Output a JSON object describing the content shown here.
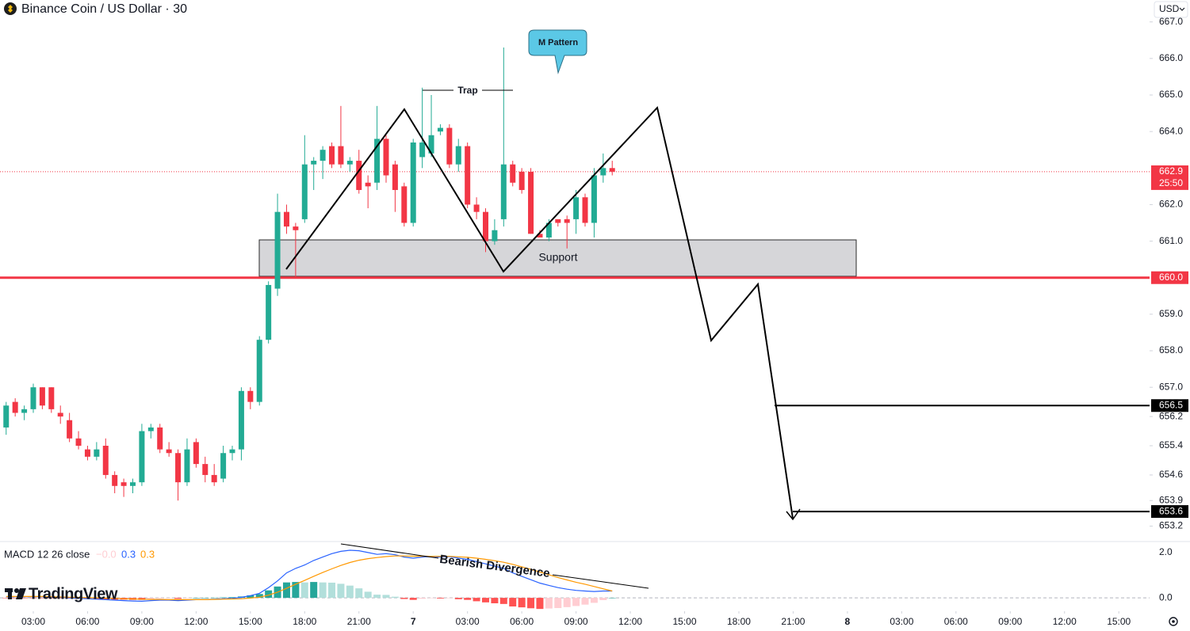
{
  "chart_data": {
    "type": "candlestick",
    "title": "Binance Coin / US Dollar · 30",
    "currency": "USD",
    "x": [
      1.5,
      2,
      2.5,
      3,
      3.5,
      4,
      4.5,
      5,
      5.5,
      6,
      6.5,
      7,
      7.5,
      8,
      8.5,
      9,
      9.5,
      10,
      10.5,
      11,
      11.5,
      12,
      12.5,
      13,
      13.5,
      14,
      14.5,
      15,
      15.5,
      16,
      16.5,
      17,
      17.5,
      18,
      18.5,
      19,
      19.5,
      20,
      20.5,
      21,
      21.5,
      22,
      22.5,
      23,
      23.5,
      24,
      24.5,
      25,
      25.5,
      26,
      26.5,
      27,
      27.5,
      28,
      28.5,
      29,
      29.5,
      30,
      30.5,
      31,
      31.5,
      32,
      32.5,
      33,
      33.5,
      34,
      34.5,
      35
    ],
    "open": [
      655.9,
      656.6,
      656.3,
      656.4,
      657.0,
      657.0,
      656.3,
      656.1,
      655.6,
      655.3,
      655.1,
      655.4,
      654.6,
      654.4,
      654.3,
      654.4,
      655.8,
      655.9,
      655.3,
      655.2,
      654.4,
      655.5,
      654.9,
      654.6,
      654.5,
      655.2,
      655.3,
      656.9,
      656.6,
      658.3,
      659.7,
      661.8,
      661.4,
      661.6,
      663.1,
      663.2,
      663.6,
      663.6,
      663.1,
      663.2,
      662.6,
      662.6,
      663.8,
      663.1,
      662.5,
      661.5,
      663.3,
      663.4,
      664.0,
      664.1,
      663.1,
      663.6,
      662.0,
      661.8,
      661.0,
      661.6,
      663.1,
      662.9,
      662.9,
      661.2,
      661.1,
      661.6,
      661.6,
      661.6,
      662.2,
      661.5,
      662.8,
      663.0
    ],
    "high": [
      656.6,
      656.7,
      656.5,
      657.1,
      657.0,
      657.0,
      656.5,
      656.3,
      655.8,
      655.4,
      655.5,
      655.6,
      654.7,
      654.5,
      654.5,
      656.0,
      656.0,
      656.0,
      655.5,
      655.3,
      655.6,
      655.6,
      655.1,
      654.9,
      655.4,
      655.4,
      657.0,
      657.0,
      658.4,
      659.9,
      662.3,
      662.0,
      661.5,
      663.9,
      663.3,
      663.6,
      663.7,
      664.7,
      663.3,
      663.5,
      662.8,
      664.7,
      663.9,
      663.2,
      662.6,
      663.8,
      665.2,
      665.0,
      664.2,
      664.2,
      663.8,
      663.7,
      662.2,
      661.9,
      661.6,
      666.3,
      663.2,
      663.0,
      663.0,
      661.3,
      661.6,
      661.6,
      661.7,
      662.4,
      662.3,
      663.0,
      663.4,
      663.2
    ],
    "low": [
      655.7,
      656.2,
      656.1,
      656.3,
      656.4,
      656.3,
      656.0,
      655.5,
      655.3,
      655.0,
      655.0,
      654.5,
      654.1,
      654.0,
      654.1,
      654.3,
      655.6,
      655.2,
      655.1,
      653.9,
      654.3,
      654.8,
      654.4,
      654.3,
      654.4,
      655.0,
      655.0,
      656.4,
      656.5,
      658.2,
      659.5,
      661.2,
      660.0,
      661.5,
      662.4,
      662.7,
      663.0,
      663.0,
      662.9,
      662.3,
      661.9,
      662.4,
      662.6,
      661.8,
      661.4,
      661.4,
      663.0,
      663.3,
      663.9,
      663.0,
      662.9,
      661.9,
      661.6,
      660.7,
      660.9,
      661.4,
      662.5,
      662.3,
      661.2,
      661.1,
      661.0,
      661.4,
      660.8,
      661.2,
      661.4,
      661.1,
      662.6,
      662.8
    ],
    "close": [
      656.5,
      656.3,
      656.4,
      657.0,
      656.5,
      656.4,
      656.2,
      655.6,
      655.4,
      655.1,
      655.3,
      654.6,
      654.3,
      654.3,
      654.4,
      655.8,
      655.9,
      655.3,
      655.2,
      654.4,
      655.3,
      654.9,
      654.6,
      654.4,
      655.2,
      655.3,
      656.9,
      656.6,
      658.3,
      659.8,
      661.8,
      661.4,
      661.3,
      663.1,
      663.2,
      663.5,
      663.1,
      663.1,
      663.2,
      662.4,
      662.5,
      663.8,
      662.8,
      662.4,
      661.5,
      663.7,
      663.7,
      663.9,
      664.1,
      663.1,
      663.6,
      662.0,
      661.8,
      661.0,
      661.3,
      663.1,
      662.6,
      662.4,
      661.2,
      661.1,
      661.5,
      661.5,
      661.5,
      662.2,
      661.5,
      662.8,
      663.0,
      662.9
    ],
    "up_color": "#22ab94",
    "down_color": "#f23645",
    "xlim": [
      1.16,
      64.7
    ],
    "xticks": [
      {
        "value": 3,
        "label": "03:00"
      },
      {
        "value": 6,
        "label": "06:00"
      },
      {
        "value": 9,
        "label": "09:00"
      },
      {
        "value": 12,
        "label": "12:00"
      },
      {
        "value": 15,
        "label": "15:00"
      },
      {
        "value": 18,
        "label": "18:00"
      },
      {
        "value": 21,
        "label": "21:00"
      },
      {
        "value": 24,
        "label": "7"
      },
      {
        "value": 27,
        "label": "03:00"
      },
      {
        "value": 30,
        "label": "06:00"
      },
      {
        "value": 33,
        "label": "09:00"
      },
      {
        "value": 36,
        "label": "12:00"
      },
      {
        "value": 39,
        "label": "15:00"
      },
      {
        "value": 42,
        "label": "18:00"
      },
      {
        "value": 45,
        "label": "21:00"
      },
      {
        "value": 48,
        "label": "8"
      },
      {
        "value": 51,
        "label": "03:00"
      },
      {
        "value": 54,
        "label": "06:00"
      },
      {
        "value": 57,
        "label": "09:00"
      },
      {
        "value": 60,
        "label": "12:00"
      },
      {
        "value": 63,
        "label": "15:00"
      }
    ],
    "ylim": [
      652.8,
      667.6
    ],
    "yticks": [
      {
        "value": 667,
        "label": "667.0"
      },
      {
        "value": 666,
        "label": "666.0"
      },
      {
        "value": 665,
        "label": "665.0"
      },
      {
        "value": 664,
        "label": "664.0"
      },
      {
        "value": 662,
        "label": "662.0"
      },
      {
        "value": 661,
        "label": "661.0"
      },
      {
        "value": 659,
        "label": "659.0"
      },
      {
        "value": 658,
        "label": "658.0"
      },
      {
        "value": 657,
        "label": "657.0"
      },
      {
        "value": 656.2,
        "label": "656.2"
      },
      {
        "value": 655.4,
        "label": "655.4"
      },
      {
        "value": 654.6,
        "label": "654.6"
      },
      {
        "value": 653.9,
        "label": "653.9"
      },
      {
        "value": 653.2,
        "label": "653.2"
      }
    ],
    "last_price": {
      "value": 662.9,
      "label": "662.9",
      "countdown": "25:50",
      "color": "#f23645"
    },
    "levels": [
      {
        "value": 660,
        "label": "660.0",
        "color": "#f23645"
      },
      {
        "value": 656.5,
        "label": "656.5",
        "color": "#000000"
      },
      {
        "value": 653.6,
        "label": "653.6",
        "color": "#000000"
      }
    ],
    "annotations": {
      "support": "Support",
      "trap": "Trap",
      "pattern": "M Pattern",
      "divergence": "Bearish Divergence"
    },
    "branding": "TradingView",
    "indicator": {
      "type": "line",
      "title": "MACD 12 26 close",
      "ylim": [
        -0.52,
        2.45
      ],
      "yticks": [
        {
          "value": 2,
          "label": "2.0"
        },
        {
          "value": 0,
          "label": "0.0"
        }
      ],
      "histogram": {
        "values": [
          -0.01,
          -0.01,
          -0.01,
          -0.01,
          -0.01,
          -0.02,
          -0.02,
          -0.03,
          -0.04,
          -0.05,
          -0.06,
          -0.07,
          -0.08,
          -0.08,
          -0.09,
          -0.09,
          -0.05,
          -0.03,
          -0.02,
          -0.04,
          -0.02,
          0,
          0,
          0.01,
          0.02,
          0.03,
          0.06,
          0.11,
          0.17,
          0.33,
          0.5,
          0.68,
          0.7,
          0.68,
          0.7,
          0.68,
          0.67,
          0.62,
          0.54,
          0.42,
          0.27,
          0.14,
          0.13,
          0.05,
          -0.05,
          -0.09,
          -0.04,
          -0.01,
          -0.03,
          -0.01,
          -0.06,
          -0.09,
          -0.15,
          -0.2,
          -0.24,
          -0.27,
          -0.38,
          -0.42,
          -0.46,
          -0.49,
          -0.47,
          -0.45,
          -0.41,
          -0.36,
          -0.3,
          -0.22,
          -0.1,
          0
        ],
        "colors": {
          "up": "#26a69a",
          "up_fading": "#b2dfdb",
          "down": "#ff5252",
          "down_fading": "#ffcdd2"
        },
        "last_label": "−0.0"
      },
      "series": [
        {
          "color": "#2962ff",
          "last_label": "0.3",
          "values": [
            0.05,
            0.05,
            0.05,
            0.05,
            0.05,
            0.03,
            0.02,
            0,
            -0.02,
            -0.04,
            -0.06,
            -0.08,
            -0.1,
            -0.12,
            -0.14,
            -0.15,
            -0.12,
            -0.1,
            -0.1,
            -0.12,
            -0.1,
            -0.08,
            -0.08,
            -0.06,
            -0.04,
            -0.02,
            0.02,
            0.1,
            0.2,
            0.45,
            0.75,
            1.1,
            1.3,
            1.45,
            1.65,
            1.8,
            1.95,
            2.05,
            2.1,
            2.08,
            2.0,
            1.92,
            1.95,
            1.9,
            1.8,
            1.75,
            1.8,
            1.82,
            1.8,
            1.82,
            1.75,
            1.7,
            1.6,
            1.5,
            1.4,
            1.3,
            1.1,
            0.95,
            0.8,
            0.65,
            0.55,
            0.45,
            0.38,
            0.33,
            0.3,
            0.28,
            0.3,
            0.3
          ]
        },
        {
          "color": "#ff9800",
          "last_label": "0.3",
          "values": [
            0.06,
            0.06,
            0.06,
            0.06,
            0.06,
            0.05,
            0.04,
            0.03,
            0.02,
            0.01,
            0,
            -0.01,
            -0.02,
            -0.04,
            -0.05,
            -0.06,
            -0.07,
            -0.07,
            -0.08,
            -0.08,
            -0.08,
            -0.08,
            -0.08,
            -0.07,
            -0.06,
            -0.05,
            -0.04,
            -0.01,
            0.03,
            0.12,
            0.25,
            0.42,
            0.6,
            0.77,
            0.95,
            1.12,
            1.28,
            1.43,
            1.56,
            1.66,
            1.73,
            1.78,
            1.82,
            1.85,
            1.85,
            1.84,
            1.84,
            1.83,
            1.83,
            1.83,
            1.81,
            1.79,
            1.75,
            1.7,
            1.64,
            1.57,
            1.48,
            1.37,
            1.26,
            1.14,
            1.02,
            0.9,
            0.79,
            0.69,
            0.6,
            0.5,
            0.4,
            0.3
          ]
        }
      ]
    }
  }
}
